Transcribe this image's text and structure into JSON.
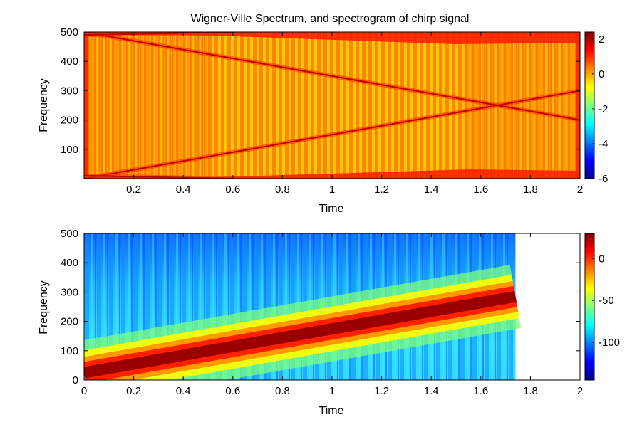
{
  "figure_title": "Wigner-Ville Spectrum, and spectrogram of chirp signal",
  "chart_data": [
    {
      "type": "heatmap",
      "name": "wigner-ville",
      "title": "Wigner-Ville Spectrum, and spectrogram of chirp signal",
      "xlabel": "Time",
      "ylabel": "Frequency",
      "xlim": [
        0,
        2
      ],
      "ylim": [
        0,
        500
      ],
      "x_ticks": [
        0.2,
        0.4,
        0.6,
        0.8,
        1,
        1.2,
        1.4,
        1.6,
        1.8,
        2
      ],
      "x_tick_labels": [
        "0.2",
        "0.4",
        "0.6",
        "0.8",
        "1",
        "1.2",
        "1.4",
        "1.6",
        "1.8",
        "2"
      ],
      "y_ticks": [
        100,
        200,
        300,
        400,
        500
      ],
      "y_tick_labels": [
        "100",
        "200",
        "300",
        "400",
        "500"
      ],
      "colorbar": {
        "range": [
          -6,
          2.4
        ],
        "ticks": [
          2,
          0,
          -2,
          -4,
          -6
        ],
        "tick_labels": [
          "2",
          "0",
          "-2",
          "-4",
          "-6"
        ],
        "colormap": "jet"
      },
      "ridges": [
        {
          "name": "chirp-rising",
          "points": [
            [
              0,
              0
            ],
            [
              2,
              300
            ]
          ]
        },
        {
          "name": "chirp-image",
          "points": [
            [
              0,
              500
            ],
            [
              2,
              200
            ]
          ]
        },
        {
          "name": "alias-low",
          "points": [
            [
              0,
              10
            ],
            [
              0.6,
              0
            ]
          ]
        },
        {
          "name": "alias-high",
          "points": [
            [
              0,
              490
            ],
            [
              0.6,
              500
            ]
          ]
        }
      ]
    },
    {
      "type": "heatmap",
      "name": "spectrogram",
      "title": "",
      "xlabel": "Time",
      "ylabel": "Frequency",
      "xlim": [
        0,
        2
      ],
      "ylim": [
        0,
        500
      ],
      "data_x_extent": [
        0,
        1.74
      ],
      "x_ticks": [
        0,
        0.2,
        0.4,
        0.6,
        0.8,
        1,
        1.2,
        1.4,
        1.6,
        1.8,
        2
      ],
      "x_tick_labels": [
        "0",
        "0.2",
        "0.4",
        "0.6",
        "0.8",
        "1",
        "1.2",
        "1.4",
        "1.6",
        "1.8",
        "2"
      ],
      "y_ticks": [
        0,
        100,
        200,
        300,
        400,
        500
      ],
      "y_tick_labels": [
        "0",
        "100",
        "200",
        "300",
        "400",
        "500"
      ],
      "colorbar": {
        "range": [
          -145,
          30
        ],
        "ticks": [
          0,
          -50,
          -100
        ],
        "tick_labels": [
          "0",
          "-50",
          "-100"
        ],
        "colormap": "jet"
      },
      "ridge": {
        "name": "chirp-energy",
        "points": [
          [
            0,
            25
          ],
          [
            1.74,
            285
          ]
        ]
      }
    }
  ]
}
